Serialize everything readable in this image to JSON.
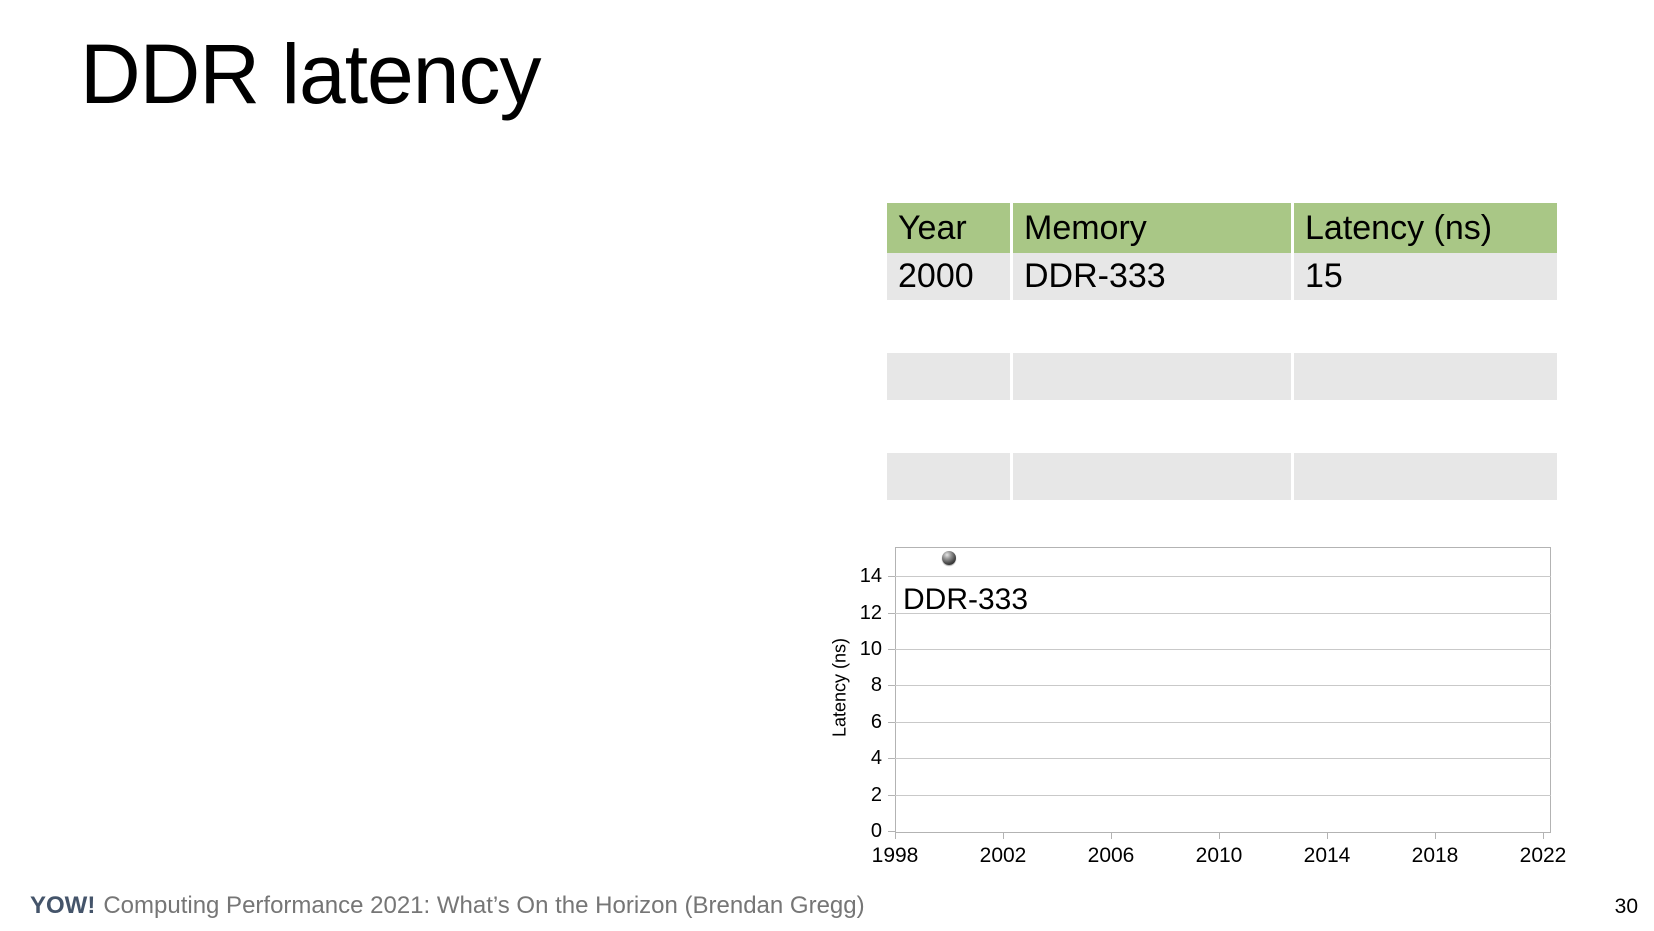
{
  "slide": {
    "title": "DDR latency",
    "page_number": "30",
    "footer": {
      "brand": "YOW!",
      "brand_color": "#44546a",
      "text": "Computing Performance 2021: What’s On the Horizon (Brendan Gregg)",
      "text_color": "#767676"
    }
  },
  "table": {
    "headers": [
      "Year",
      "Memory",
      "Latency (ns)"
    ],
    "rows": [
      [
        "2000",
        "DDR-333",
        "15"
      ]
    ],
    "empty_rows": 2,
    "header_bg": "#a9c786",
    "row_bg": "#e7e7e7"
  },
  "chart_data": {
    "type": "scatter",
    "title": "",
    "xlabel": "",
    "ylabel": "Latency (ns)",
    "xlim": [
      1998,
      2022
    ],
    "ylim": [
      0,
      15.6
    ],
    "x_ticks": [
      "1998",
      "2002",
      "2006",
      "2010",
      "2014",
      "2018",
      "2022"
    ],
    "y_ticks": [
      0,
      2,
      4,
      6,
      8,
      10,
      12,
      14
    ],
    "grid": true,
    "legend": false,
    "series": [
      {
        "name": "DDR latency",
        "points": [
          {
            "x": 2000,
            "y": 15,
            "label": "DDR-333"
          }
        ]
      }
    ]
  }
}
